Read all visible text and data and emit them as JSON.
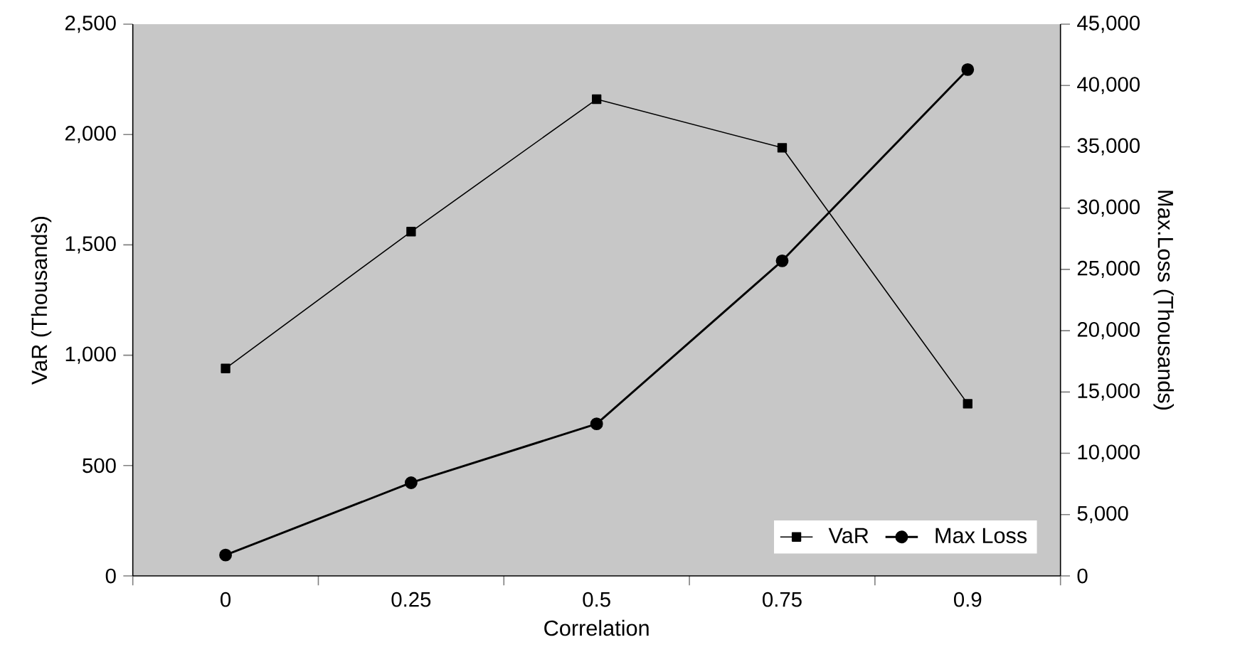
{
  "chart_data": {
    "type": "line",
    "xlabel": "Correlation",
    "ylabel": "VaR (Thousands)",
    "y2label": "Max.Loss (Thousands)",
    "categories": [
      "0",
      "0.25",
      "0.5",
      "0.75",
      "0.9"
    ],
    "series": [
      {
        "name": "VaR",
        "color": "#000000",
        "marker": "square",
        "values": [
          940,
          1560,
          2160,
          1940,
          780
        ]
      },
      {
        "name": "Max Loss",
        "color": "#000000",
        "marker": "circle",
        "axis": "y2",
        "values": [
          1700,
          7600,
          12400,
          25700,
          41300
        ]
      }
    ],
    "ylim": [
      0,
      2500
    ],
    "yticks": [
      0,
      500,
      {
        "value": 1000,
        "label": "1,000"
      },
      {
        "value": 1500,
        "label": "1,500"
      },
      {
        "value": 2000,
        "label": "2,000"
      },
      {
        "value": 2500,
        "label": "2,500"
      }
    ],
    "y2lim": [
      0,
      45000
    ],
    "y2ticks": [
      0,
      {
        "value": 5000,
        "label": "5,000"
      },
      {
        "value": 10000,
        "label": "10,000"
      },
      {
        "value": 15000,
        "label": "15,000"
      },
      {
        "value": 20000,
        "label": "20,000"
      },
      {
        "value": 25000,
        "label": "25,000"
      },
      {
        "value": 30000,
        "label": "30,000"
      },
      {
        "value": 35000,
        "label": "35,000"
      },
      {
        "value": 40000,
        "label": "40,000"
      },
      {
        "value": 45000,
        "label": "45,000"
      }
    ],
    "legend": "bottom right",
    "grid": false
  }
}
